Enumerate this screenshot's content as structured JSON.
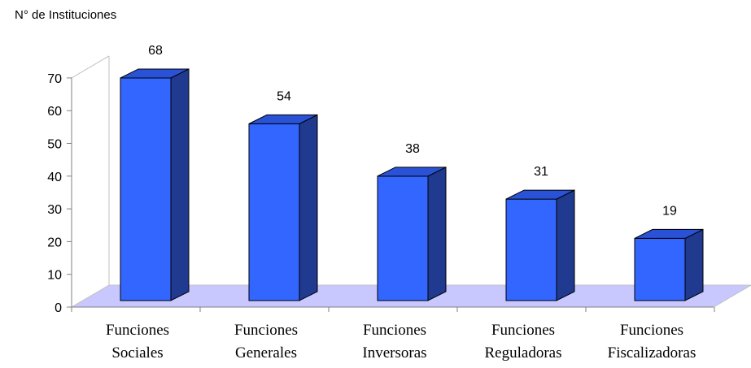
{
  "chart_data": {
    "type": "bar",
    "ylabel": "N° de Instituciones",
    "categories": [
      [
        "Funciones",
        "Sociales"
      ],
      [
        "Funciones",
        "Generales"
      ],
      [
        "Funciones",
        "Inversoras"
      ],
      [
        "Funciones",
        "Reguladoras"
      ],
      [
        "Funciones",
        "Fiscalizadoras"
      ]
    ],
    "values": [
      68,
      54,
      38,
      31,
      19
    ],
    "data_labels": [
      "68",
      "54",
      "38",
      "31",
      "19"
    ],
    "ylim": [
      0,
      70
    ],
    "yticks": [
      0,
      10,
      20,
      30,
      40,
      50,
      60,
      70
    ],
    "grid": false,
    "legend": "none",
    "style": "3d-column",
    "colors": {
      "bar_front": "#3366ff",
      "bar_side": "#1f3a8f",
      "bar_top": "#2a52d6",
      "floor": "#c8c8ff",
      "outline": "#000000",
      "wall_lines": "#c0c0c0",
      "axis": "#808080"
    }
  }
}
